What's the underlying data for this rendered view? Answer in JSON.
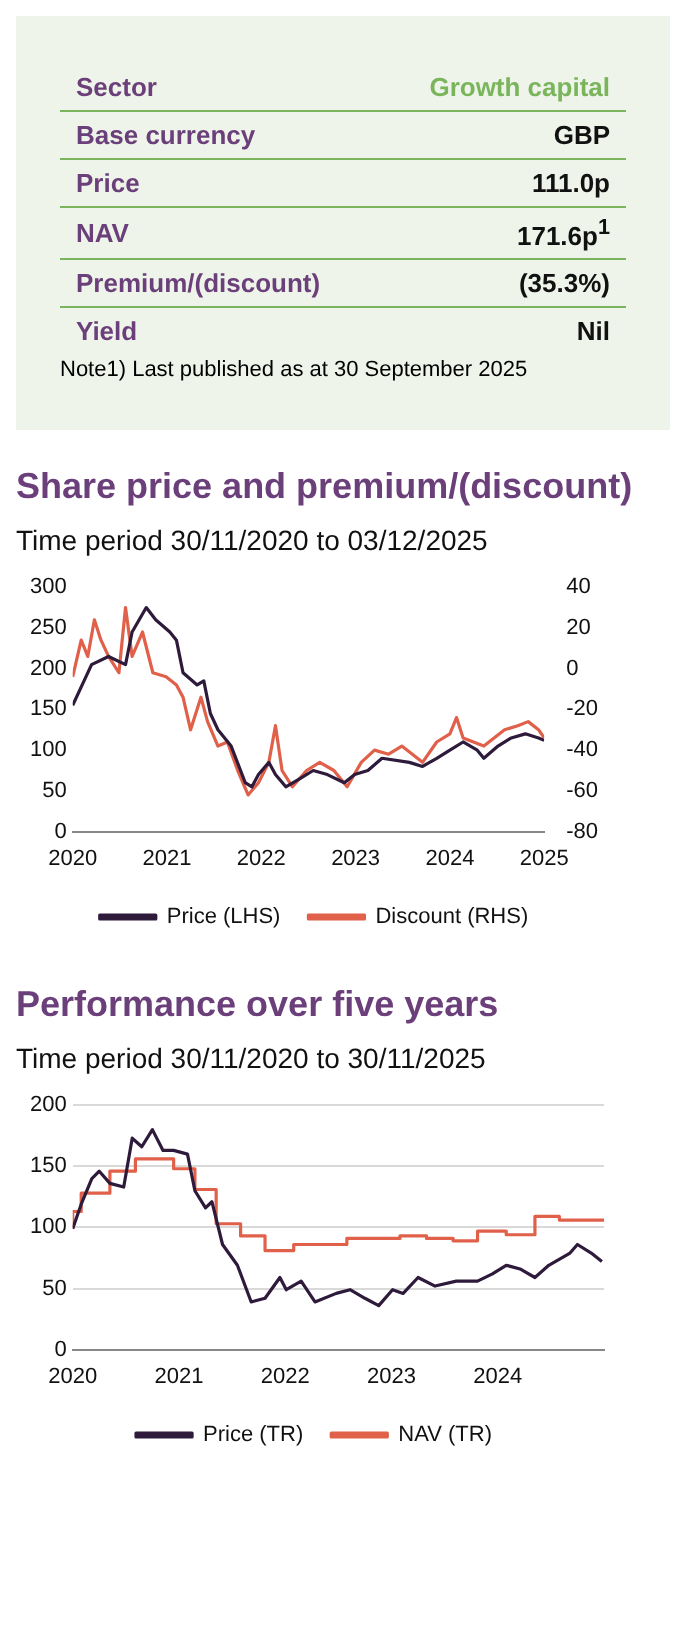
{
  "chart_data": [
    {
      "type": "other",
      "categories": [
        "Sector",
        "Base currency",
        "Price",
        "NAV",
        "Premium/(discount)",
        "Yield"
      ],
      "value_labels": [
        "Growth capital",
        "GBP",
        "111.0p",
        "171.6p$^{1}$",
        "(35.3%)",
        "Nil"
      ],
      "annotations": [
        "Note1) Last published as at 30 September 2025"
      ]
    },
    {
      "type": "line",
      "title": "Share price and premium/(discount)",
      "subtitle": "Time period 30/11/2020 to 03/12/2025",
      "xlim": [
        2020,
        2025
      ],
      "xticks": [
        2020,
        2021,
        2022,
        2023,
        2024,
        2025
      ],
      "ylim": [
        0,
        300
      ],
      "yticks": [
        0,
        50,
        100,
        150,
        200,
        250,
        300
      ],
      "y2lim": [
        -80,
        40
      ],
      "y2ticks": [
        -80,
        -60,
        -40,
        -20,
        0,
        20,
        40
      ],
      "grid": false,
      "legend": "bottom",
      "series": [
        {
          "name": "Price (LHS)",
          "color": "#2e1a3a",
          "x": [
            2020.0,
            2020.2,
            2020.38,
            2020.56,
            2020.63,
            2020.78,
            2020.88,
            2021.03,
            2021.1,
            2021.17,
            2021.32,
            2021.39,
            2021.46,
            2021.54,
            2021.68,
            2021.83,
            2021.9,
            2021.97,
            2022.08,
            2022.15,
            2022.26,
            2022.41,
            2022.55,
            2022.7,
            2022.88,
            2022.99,
            2023.13,
            2023.28,
            2023.57,
            2023.71,
            2023.86,
            2024.0,
            2024.14,
            2024.29,
            2024.36,
            2024.51,
            2024.65,
            2024.8,
            2024.94,
            2025.0
          ],
          "values": [
            155,
            205,
            215,
            205,
            245,
            275,
            260,
            245,
            235,
            195,
            180,
            185,
            145,
            125,
            105,
            60,
            55,
            70,
            85,
            70,
            55,
            65,
            75,
            70,
            60,
            70,
            75,
            90,
            85,
            80,
            90,
            100,
            110,
            100,
            90,
            105,
            115,
            120,
            115,
            112
          ]
        },
        {
          "name": "Discount (RHS)",
          "color": "#e0604a",
          "axis": "y2",
          "x": [
            2020.0,
            2020.09,
            2020.16,
            2020.23,
            2020.3,
            2020.38,
            2020.49,
            2020.56,
            2020.63,
            2020.74,
            2020.85,
            2020.99,
            2021.1,
            2021.17,
            2021.25,
            2021.36,
            2021.43,
            2021.54,
            2021.64,
            2021.75,
            2021.86,
            2021.97,
            2022.08,
            2022.15,
            2022.22,
            2022.33,
            2022.48,
            2022.62,
            2022.77,
            2022.91,
            2023.06,
            2023.2,
            2023.35,
            2023.49,
            2023.71,
            2023.86,
            2024.0,
            2024.07,
            2024.14,
            2024.36,
            2024.58,
            2024.72,
            2024.83,
            2024.94,
            2025.0
          ],
          "values": [
            -4,
            14,
            6,
            24,
            14,
            6,
            -2,
            30,
            6,
            18,
            -2,
            -4,
            -8,
            -14,
            -30,
            -14,
            -26,
            -38,
            -36,
            -50,
            -62,
            -56,
            -46,
            -28,
            -50,
            -58,
            -50,
            -46,
            -50,
            -58,
            -46,
            -40,
            -42,
            -38,
            -46,
            -36,
            -32,
            -24,
            -34,
            -38,
            -30,
            -28,
            -26,
            -30,
            -34
          ]
        }
      ]
    },
    {
      "type": "line",
      "title": "Performance over five years",
      "subtitle": "Time period 30/11/2020 to 30/11/2025",
      "xlim": [
        2020,
        2025
      ],
      "xticks": [
        2020,
        2021,
        2022,
        2023,
        2024
      ],
      "ylim": [
        0,
        200
      ],
      "yticks": [
        0,
        50,
        100,
        150,
        200
      ],
      "grid": "y",
      "legend": "bottom",
      "series": [
        {
          "name": "Price (TR)",
          "color": "#2e1a3a",
          "x": [
            2020.0,
            2020.08,
            2020.18,
            2020.25,
            2020.35,
            2020.48,
            2020.56,
            2020.65,
            2020.75,
            2020.85,
            2020.95,
            2021.08,
            2021.15,
            2021.25,
            2021.31,
            2021.41,
            2021.55,
            2021.68,
            2021.81,
            2021.95,
            2022.01,
            2022.15,
            2022.28,
            2022.48,
            2022.61,
            2022.75,
            2022.88,
            2023.01,
            2023.11,
            2023.25,
            2023.41,
            2023.61,
            2023.81,
            2023.95,
            2024.08,
            2024.21,
            2024.35,
            2024.48,
            2024.68,
            2024.75,
            2024.88,
            2024.98
          ],
          "values": [
            99,
            119,
            140,
            146,
            136,
            133,
            173,
            166,
            180,
            163,
            163,
            160,
            130,
            116,
            121,
            86,
            69,
            39,
            42,
            59,
            49,
            56,
            39,
            46,
            49,
            42,
            36,
            49,
            46,
            59,
            52,
            56,
            56,
            62,
            69,
            66,
            59,
            69,
            79,
            86,
            79,
            72
          ]
        },
        {
          "name": "NAV (TR)",
          "color": "#e0604a",
          "type": "step",
          "x": [
            2020.0,
            2020.08,
            2020.35,
            2020.59,
            2020.95,
            2021.15,
            2021.35,
            2021.58,
            2021.81,
            2022.08,
            2022.58,
            2023.08,
            2023.33,
            2023.58,
            2023.81,
            2024.08,
            2024.35,
            2024.58,
            2024.81,
            2025.0
          ],
          "values": [
            99,
            113,
            128,
            146,
            156,
            148,
            131,
            103,
            93,
            81,
            86,
            91,
            93,
            91,
            89,
            97,
            94,
            109,
            106,
            106
          ]
        }
      ]
    }
  ]
}
